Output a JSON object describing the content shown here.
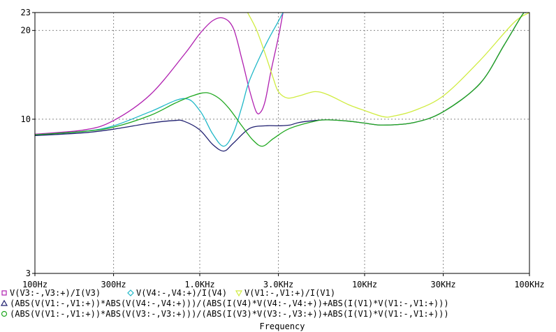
{
  "chart_data": {
    "type": "line",
    "xlabel": "Frequency",
    "ylabel": "",
    "x_scale": "log",
    "y_scale": "log",
    "xlim": [
      100,
      100000
    ],
    "ylim": [
      3,
      23
    ],
    "grid": "dotted",
    "legend": "bottom",
    "x_ticks": [
      {
        "value": 100,
        "label": "100Hz"
      },
      {
        "value": 300,
        "label": "300Hz"
      },
      {
        "value": 1000,
        "label": "1.0KHz"
      },
      {
        "value": 3000,
        "label": "3.0KHz"
      },
      {
        "value": 10000,
        "label": "10KHz"
      },
      {
        "value": 30000,
        "label": "30KHz"
      },
      {
        "value": 100000,
        "label": "100KHz"
      }
    ],
    "y_ticks": [
      {
        "value": 3,
        "label": "3"
      },
      {
        "value": 10,
        "label": "10"
      },
      {
        "value": 20,
        "label": "20"
      },
      {
        "value": 23,
        "label": "23"
      }
    ],
    "series": [
      {
        "name": "V(V3:-,V3:+)/I(V3)",
        "color": "#b020b0",
        "marker": "square",
        "points": [
          [
            100,
            8.9
          ],
          [
            200,
            9.2
          ],
          [
            300,
            9.9
          ],
          [
            500,
            12.1
          ],
          [
            800,
            16.5
          ],
          [
            1000,
            19.5
          ],
          [
            1200,
            21.6
          ],
          [
            1400,
            22.0
          ],
          [
            1600,
            20.3
          ],
          [
            1800,
            16.0
          ],
          [
            2000,
            12.6
          ],
          [
            2200,
            10.6
          ],
          [
            2350,
            10.6
          ],
          [
            2500,
            11.6
          ],
          [
            2700,
            14.5
          ],
          [
            3000,
            19.0
          ],
          [
            3200,
            23
          ]
        ]
      },
      {
        "name": "V(V4:-,V4:+)/I(V4)",
        "color": "#20b8c8",
        "marker": "diamond",
        "points": [
          [
            100,
            8.85
          ],
          [
            200,
            9.1
          ],
          [
            300,
            9.5
          ],
          [
            500,
            10.6
          ],
          [
            800,
            11.75
          ],
          [
            1000,
            10.7
          ],
          [
            1200,
            8.9
          ],
          [
            1400,
            8.1
          ],
          [
            1600,
            9.0
          ],
          [
            1800,
            11.0
          ],
          [
            2000,
            13.5
          ],
          [
            2500,
            17.8
          ],
          [
            3000,
            21.5
          ],
          [
            3200,
            23
          ]
        ]
      },
      {
        "name": "V(V1:-,V1:+)/I(V1)",
        "color": "#d0ec40",
        "marker": "triangle-down",
        "points": [
          [
            1950,
            23
          ],
          [
            2200,
            20.2
          ],
          [
            2500,
            16.6
          ],
          [
            2800,
            13.7
          ],
          [
            3000,
            12.4
          ],
          [
            3400,
            11.8
          ],
          [
            4000,
            12.0
          ],
          [
            5000,
            12.4
          ],
          [
            6000,
            12.1
          ],
          [
            8000,
            11.2
          ],
          [
            10000,
            10.7
          ],
          [
            13000,
            10.2
          ],
          [
            15000,
            10.25
          ],
          [
            20000,
            10.7
          ],
          [
            30000,
            12.0
          ],
          [
            50000,
            15.8
          ],
          [
            80000,
            21.2
          ],
          [
            100000,
            23
          ]
        ]
      },
      {
        "name": "(ABS(V(V1:-,V1:+))*ABS(V(V4:-,V4:+)))/(ABS(I(V4)*V(V4:-,V4:+))+ABS(I(V1)*V(V1:-,V1:+)))",
        "color": "#202070",
        "marker": "triangle-up",
        "points": [
          [
            100,
            8.8
          ],
          [
            200,
            9.0
          ],
          [
            300,
            9.25
          ],
          [
            500,
            9.7
          ],
          [
            700,
            9.9
          ],
          [
            800,
            9.85
          ],
          [
            1000,
            9.2
          ],
          [
            1200,
            8.2
          ],
          [
            1400,
            7.8
          ],
          [
            1600,
            8.3
          ],
          [
            2000,
            9.3
          ],
          [
            2500,
            9.5
          ],
          [
            3000,
            9.5
          ],
          [
            3500,
            9.55
          ],
          [
            4000,
            9.75
          ],
          [
            5000,
            9.9
          ],
          [
            6000,
            9.95
          ],
          [
            8000,
            9.85
          ],
          [
            10000,
            9.7
          ],
          [
            13000,
            9.55
          ],
          [
            20000,
            9.75
          ],
          [
            30000,
            10.6
          ],
          [
            50000,
            13.2
          ],
          [
            70000,
            17.8
          ],
          [
            90000,
            22.5
          ],
          [
            95000,
            23
          ]
        ]
      },
      {
        "name": "(ABS(V(V1:-,V1:+))*ABS(V(V3:-,V3:+)))/(ABS(I(V3)*V(V3:-,V3:+))+ABS(I(V1)*V(V1:-,V1:+)))",
        "color": "#20a820",
        "marker": "circle",
        "points": [
          [
            100,
            8.85
          ],
          [
            200,
            9.1
          ],
          [
            300,
            9.4
          ],
          [
            500,
            10.3
          ],
          [
            700,
            11.3
          ],
          [
            900,
            12.0
          ],
          [
            1100,
            12.3
          ],
          [
            1300,
            11.8
          ],
          [
            1500,
            10.9
          ],
          [
            1800,
            9.5
          ],
          [
            2100,
            8.5
          ],
          [
            2400,
            8.1
          ],
          [
            2800,
            8.6
          ],
          [
            3500,
            9.3
          ],
          [
            5000,
            9.85
          ],
          [
            6000,
            9.95
          ],
          [
            8000,
            9.85
          ],
          [
            10000,
            9.7
          ],
          [
            13000,
            9.55
          ],
          [
            20000,
            9.75
          ],
          [
            30000,
            10.6
          ],
          [
            50000,
            13.2
          ],
          [
            70000,
            17.8
          ],
          [
            90000,
            22.5
          ],
          [
            95000,
            23
          ]
        ]
      }
    ]
  }
}
